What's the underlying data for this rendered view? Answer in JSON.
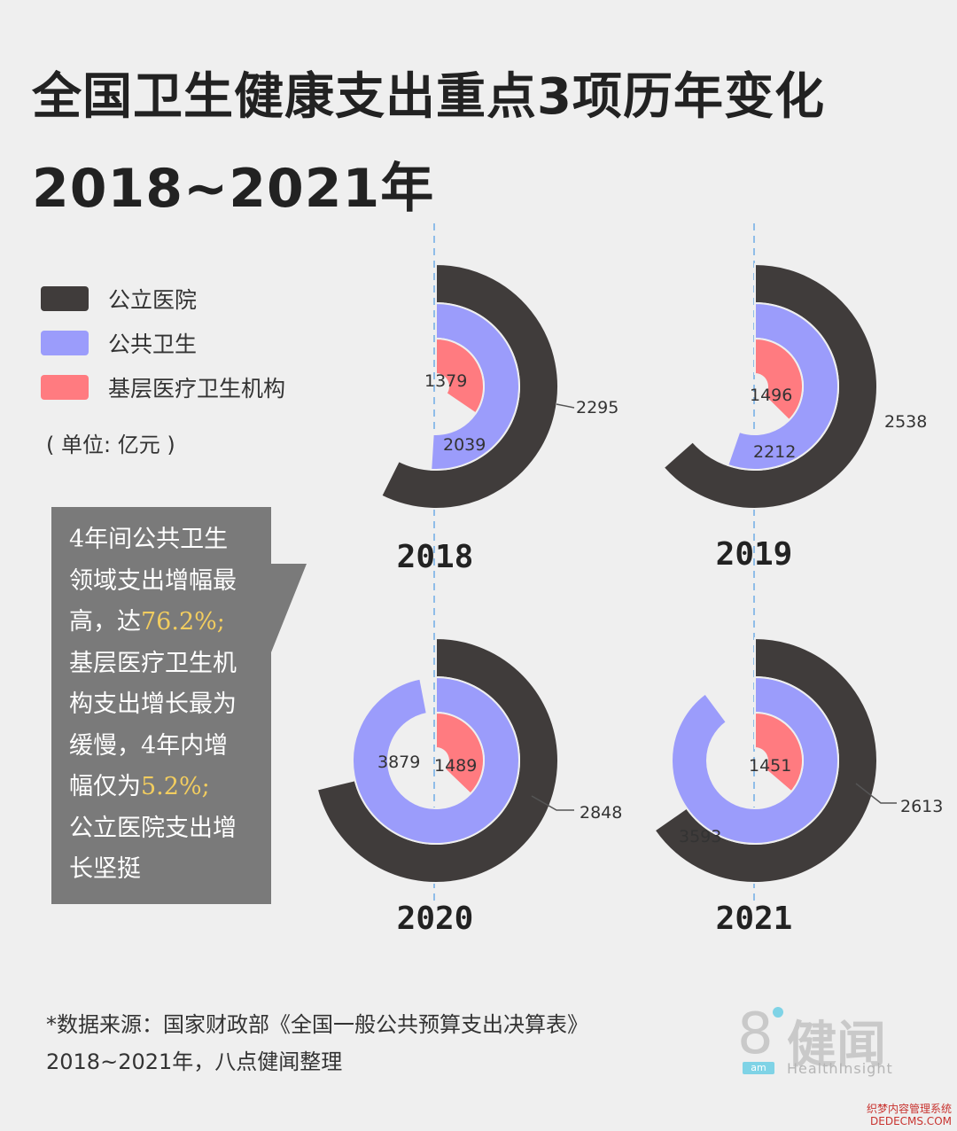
{
  "title": {
    "line1": "全国卫生健康支出重点3项历年变化",
    "line2": "2018~2021年"
  },
  "legend": {
    "items": [
      {
        "label": "公立医院",
        "color": "#403c3b"
      },
      {
        "label": "公共卫生",
        "color": "#9b9cfb"
      },
      {
        "label": "基层医疗卫生机构",
        "color": "#ff7b80"
      }
    ],
    "unit": "( 单位: 亿元 )"
  },
  "callout": {
    "lines": [
      "4年间公共卫生",
      "领域支出增幅最",
      "高，达",
      "76.2%;",
      "基层医疗卫生机",
      "构支出增长最为",
      "缓慢，4年内增",
      "幅仅为",
      "5.2%;",
      "公立医院支出增",
      "长坚挺"
    ]
  },
  "chart_data": [
    {
      "type": "pie",
      "year": "2018",
      "categories": [
        "公立医院",
        "公共卫生",
        "基层医疗卫生机构"
      ],
      "values": [
        2295,
        2039,
        1379
      ],
      "labels": [
        "2295",
        "2039",
        "1379"
      ]
    },
    {
      "type": "pie",
      "year": "2019",
      "categories": [
        "公立医院",
        "公共卫生",
        "基层医疗卫生机构"
      ],
      "values": [
        2538,
        2212,
        1496
      ],
      "labels": [
        "2538",
        "2212",
        "1496"
      ]
    },
    {
      "type": "pie",
      "year": "2020",
      "categories": [
        "公立医院",
        "公共卫生",
        "基层医疗卫生机构"
      ],
      "values": [
        2848,
        3879,
        1489
      ],
      "labels": [
        "2848",
        "3879",
        "1489"
      ]
    },
    {
      "type": "pie",
      "year": "2021",
      "categories": [
        "公立医院",
        "公共卫生",
        "基层医疗卫生机构"
      ],
      "values": [
        2613,
        3593,
        1451
      ],
      "labels": [
        "2613",
        "3593",
        "1451"
      ]
    }
  ],
  "source": {
    "line1": "*数据来源：国家财政部《全国一般公共预算支出决算表》",
    "line2": "2018~2021年，八点健闻整理"
  },
  "logo": {
    "mark": "8",
    "sub": "am",
    "name": "健闻",
    "en": "HealthInsight"
  },
  "watermark": {
    "line1": "织梦内容管理系统",
    "line2": "DEDECMS.COM"
  }
}
